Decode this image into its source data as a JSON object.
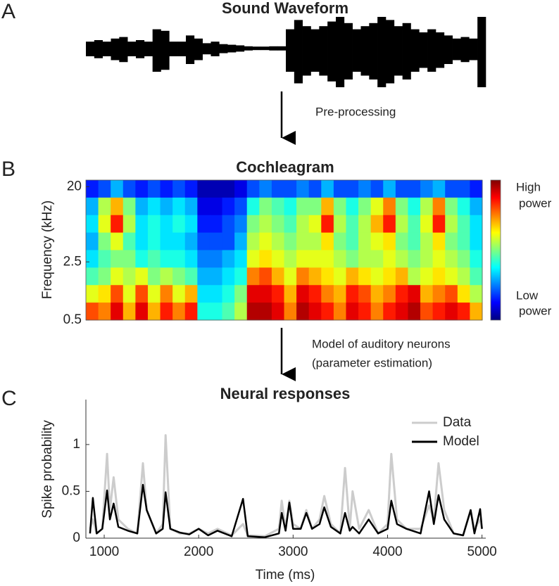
{
  "panel_labels": [
    "A",
    "B",
    "C"
  ],
  "arrow_labels": {
    "preprocessing": "Pre-processing",
    "model": [
      "Model of auditory neurons",
      "(parameter estimation)"
    ]
  },
  "chart_data": [
    {
      "type": "waveform",
      "title": "Sound Waveform",
      "color": "#000000",
      "envelope": [
        0.2,
        0.25,
        0.2,
        0.3,
        0.35,
        0.2,
        0.25,
        0.2,
        0.6,
        0.55,
        0.2,
        0.2,
        0.4,
        0.3,
        0.15,
        0.2,
        0.12,
        0.1,
        0.08,
        0.05,
        0.04,
        0.04,
        0.05,
        0.05,
        0.6,
        0.9,
        0.7,
        0.6,
        0.7,
        0.85,
        1.0,
        0.8,
        0.6,
        0.7,
        0.8,
        1.0,
        0.9,
        0.7,
        0.8,
        0.6,
        0.5,
        0.6,
        0.5,
        0.4,
        0.3,
        0.35,
        0.3,
        1.0
      ]
    },
    {
      "type": "heatmap",
      "title": "Cochleagram",
      "ylabel": "Frequency (kHz)",
      "log_y": true,
      "ylim": [
        0.5,
        24
      ],
      "yticks": [
        0.5,
        2.5,
        20
      ],
      "colormap": "jet",
      "colorbar_labels": {
        "high": [
          "High",
          "power"
        ],
        "low": [
          "Low",
          "power"
        ]
      },
      "matrix": [
        [
          0.15,
          0.2,
          0.3,
          0.2,
          0.15,
          0.2,
          0.15,
          0.2,
          0.15,
          0.05,
          0.05,
          0.05,
          0.1,
          0.2,
          0.25,
          0.2,
          0.2,
          0.25,
          0.2,
          0.3,
          0.2,
          0.2,
          0.25,
          0.2,
          0.3,
          0.2,
          0.2,
          0.25,
          0.3,
          0.2,
          0.2,
          0.15
        ],
        [
          0.3,
          0.55,
          0.7,
          0.5,
          0.3,
          0.35,
          0.3,
          0.35,
          0.3,
          0.1,
          0.1,
          0.15,
          0.2,
          0.4,
          0.5,
          0.45,
          0.4,
          0.5,
          0.5,
          0.7,
          0.5,
          0.4,
          0.5,
          0.6,
          0.75,
          0.5,
          0.4,
          0.55,
          0.75,
          0.5,
          0.4,
          0.3
        ],
        [
          0.35,
          0.6,
          0.85,
          0.55,
          0.35,
          0.4,
          0.35,
          0.4,
          0.35,
          0.15,
          0.15,
          0.2,
          0.25,
          0.5,
          0.55,
          0.5,
          0.45,
          0.55,
          0.6,
          0.85,
          0.55,
          0.45,
          0.55,
          0.7,
          0.85,
          0.55,
          0.45,
          0.6,
          0.85,
          0.55,
          0.45,
          0.35
        ],
        [
          0.3,
          0.5,
          0.6,
          0.45,
          0.35,
          0.4,
          0.35,
          0.35,
          0.3,
          0.2,
          0.2,
          0.2,
          0.3,
          0.55,
          0.6,
          0.55,
          0.5,
          0.55,
          0.55,
          0.65,
          0.5,
          0.45,
          0.55,
          0.6,
          0.65,
          0.5,
          0.45,
          0.55,
          0.65,
          0.5,
          0.45,
          0.35
        ],
        [
          0.35,
          0.45,
          0.5,
          0.5,
          0.4,
          0.45,
          0.4,
          0.4,
          0.35,
          0.25,
          0.25,
          0.3,
          0.35,
          0.6,
          0.65,
          0.6,
          0.55,
          0.6,
          0.6,
          0.6,
          0.55,
          0.5,
          0.55,
          0.55,
          0.6,
          0.55,
          0.5,
          0.55,
          0.6,
          0.55,
          0.5,
          0.4
        ],
        [
          0.45,
          0.5,
          0.6,
          0.55,
          0.6,
          0.5,
          0.55,
          0.5,
          0.45,
          0.3,
          0.3,
          0.35,
          0.4,
          0.75,
          0.8,
          0.7,
          0.6,
          0.75,
          0.7,
          0.65,
          0.6,
          0.7,
          0.65,
          0.6,
          0.65,
          0.7,
          0.55,
          0.6,
          0.65,
          0.6,
          0.55,
          0.45
        ],
        [
          0.6,
          0.65,
          0.8,
          0.6,
          0.8,
          0.6,
          0.75,
          0.6,
          0.7,
          0.35,
          0.35,
          0.4,
          0.5,
          0.9,
          0.9,
          0.85,
          0.7,
          0.9,
          0.85,
          0.75,
          0.7,
          0.85,
          0.8,
          0.7,
          0.75,
          0.85,
          0.9,
          0.7,
          0.75,
          0.8,
          0.65,
          0.55
        ],
        [
          0.8,
          0.75,
          0.9,
          0.7,
          0.9,
          0.7,
          0.85,
          0.75,
          0.85,
          0.4,
          0.4,
          0.45,
          0.55,
          0.95,
          0.95,
          0.9,
          0.75,
          0.95,
          0.9,
          0.85,
          0.75,
          0.9,
          0.85,
          0.75,
          0.85,
          0.9,
          0.95,
          0.8,
          0.85,
          0.9,
          0.85,
          0.7
        ]
      ]
    },
    {
      "type": "line",
      "title": "Neural responses",
      "xlabel": "Time (ms)",
      "ylabel": "Spike probability",
      "xlim": [
        806,
        5040
      ],
      "ylim": [
        0,
        1.48
      ],
      "xticks": [
        1000,
        2000,
        3000,
        4000,
        5000
      ],
      "yticks": [
        0,
        0.5,
        1
      ],
      "legend": "upper right",
      "x": [
        850,
        880,
        920,
        980,
        1030,
        1060,
        1100,
        1150,
        1250,
        1350,
        1410,
        1450,
        1550,
        1620,
        1650,
        1700,
        1800,
        1900,
        2000,
        2100,
        2200,
        2350,
        2470,
        2520,
        2700,
        2850,
        2880,
        2920,
        2960,
        3000,
        3080,
        3140,
        3200,
        3280,
        3330,
        3400,
        3500,
        3550,
        3600,
        3630,
        3700,
        3800,
        3900,
        4000,
        4040,
        4100,
        4200,
        4350,
        4440,
        4490,
        4540,
        4600,
        4700,
        4800,
        4880,
        4920,
        4980,
        5000
      ],
      "series": [
        {
          "name": "Data",
          "color": "#cccccc",
          "values": [
            0.1,
            0.2,
            0.05,
            0.1,
            0.9,
            0.3,
            0.65,
            0.2,
            0.1,
            0.05,
            0.8,
            0.3,
            0.05,
            0.15,
            1.1,
            0.1,
            0.05,
            0.05,
            0.1,
            0.05,
            0.1,
            0.03,
            0.15,
            0.03,
            0.02,
            0.1,
            0.4,
            0.1,
            0.4,
            0.15,
            0.1,
            0.3,
            0.1,
            0.2,
            0.45,
            0.15,
            0.05,
            0.75,
            0.1,
            0.5,
            0.1,
            0.3,
            0.05,
            0.15,
            0.9,
            0.2,
            0.1,
            0.1,
            0.35,
            0.2,
            0.8,
            0.3,
            0.05,
            0.03,
            0.3,
            0.1,
            0.2,
            0.1
          ]
        },
        {
          "name": "Model",
          "color": "#000000",
          "values": [
            0.05,
            0.43,
            0.05,
            0.1,
            0.51,
            0.2,
            0.37,
            0.12,
            0.08,
            0.05,
            0.57,
            0.3,
            0.05,
            0.1,
            0.49,
            0.1,
            0.06,
            0.04,
            0.1,
            0.03,
            0.08,
            0.02,
            0.42,
            0.02,
            0.01,
            0.05,
            0.27,
            0.08,
            0.38,
            0.1,
            0.1,
            0.27,
            0.1,
            0.15,
            0.33,
            0.12,
            0.05,
            0.27,
            0.08,
            0.12,
            0.05,
            0.2,
            0.05,
            0.1,
            0.4,
            0.15,
            0.1,
            0.05,
            0.5,
            0.15,
            0.46,
            0.2,
            0.05,
            0.03,
            0.3,
            0.05,
            0.31,
            0.1
          ]
        }
      ]
    }
  ]
}
